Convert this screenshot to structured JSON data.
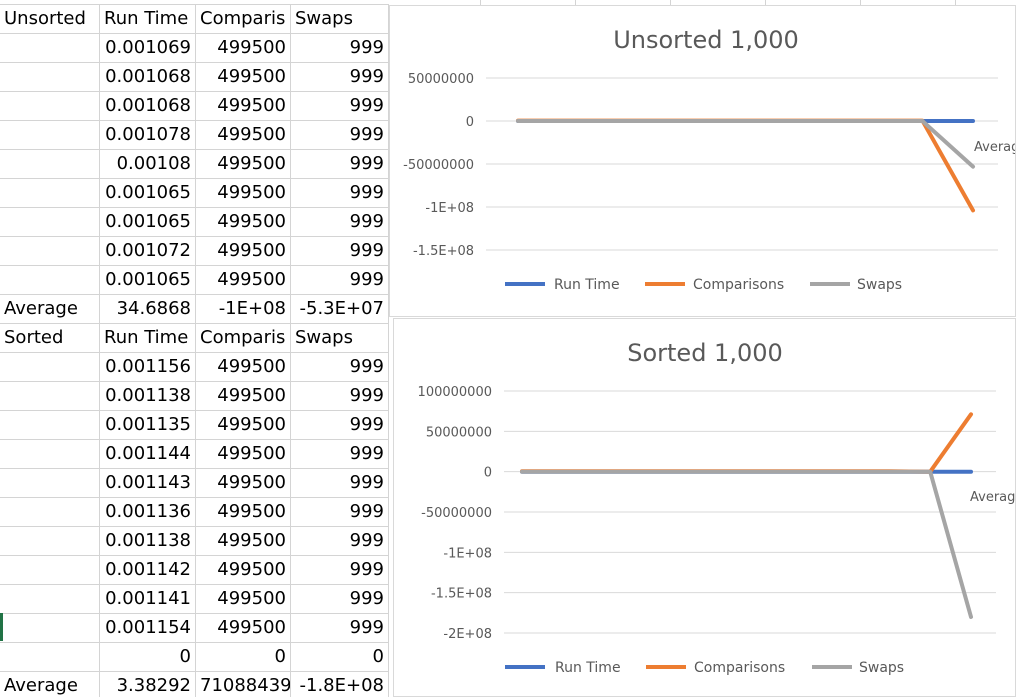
{
  "sheet": {
    "unsorted_block": {
      "header": [
        "Unsorted",
        "Run Time",
        "Comparis",
        "Swaps"
      ],
      "rows": [
        [
          "",
          "0.001069",
          "499500",
          "999"
        ],
        [
          "",
          "0.001068",
          "499500",
          "999"
        ],
        [
          "",
          "0.001068",
          "499500",
          "999"
        ],
        [
          "",
          "0.001078",
          "499500",
          "999"
        ],
        [
          "",
          "0.00108",
          "499500",
          "999"
        ],
        [
          "",
          "0.001065",
          "499500",
          "999"
        ],
        [
          "",
          "0.001065",
          "499500",
          "999"
        ],
        [
          "",
          "0.001072",
          "499500",
          "999"
        ],
        [
          "",
          "0.001065",
          "499500",
          "999"
        ]
      ],
      "average": [
        "Average",
        "34.6868",
        "-1E+08",
        "-5.3E+07"
      ]
    },
    "sorted_block": {
      "header": [
        "Sorted",
        "Run Time",
        "Comparis",
        "Swaps"
      ],
      "rows": [
        [
          "",
          "0.001156",
          "499500",
          "999"
        ],
        [
          "",
          "0.001138",
          "499500",
          "999"
        ],
        [
          "",
          "0.001135",
          "499500",
          "999"
        ],
        [
          "",
          "0.001144",
          "499500",
          "999"
        ],
        [
          "",
          "0.001143",
          "499500",
          "999"
        ],
        [
          "",
          "0.001136",
          "499500",
          "999"
        ],
        [
          "",
          "0.001138",
          "499500",
          "999"
        ],
        [
          "",
          "0.001142",
          "499500",
          "999"
        ],
        [
          "",
          "0.001141",
          "499500",
          "999"
        ],
        [
          "",
          "0.001154",
          "499500",
          "999"
        ],
        [
          "",
          "0",
          "0",
          "0"
        ]
      ],
      "average": [
        "Average",
        "3.38292",
        "71088439",
        "-1.8E+08"
      ]
    }
  },
  "colors": {
    "run_time": "#4472c4",
    "comparisons": "#ed7d31",
    "swaps": "#a5a5a5",
    "gridline": "#d9d9d9",
    "cell_border": "#d4d4d4"
  },
  "chart_data": [
    {
      "type": "line",
      "title": "Unsorted 1,000",
      "x": [
        "",
        "",
        "",
        "",
        "",
        "",
        "",
        "",
        "",
        "Average"
      ],
      "series": [
        {
          "name": "Run Time",
          "values": [
            0.001069,
            0.001068,
            0.001068,
            0.001078,
            0.00108,
            0.001065,
            0.001065,
            0.001072,
            0.001065,
            34.6868
          ]
        },
        {
          "name": "Comparisons",
          "values": [
            499500,
            499500,
            499500,
            499500,
            499500,
            499500,
            499500,
            499500,
            499500,
            -104000000
          ]
        },
        {
          "name": "Swaps",
          "values": [
            999,
            999,
            999,
            999,
            999,
            999,
            999,
            999,
            999,
            -53000000
          ]
        }
      ],
      "y_ticks": [
        "50000000",
        "0",
        "-50000000",
        "-1E+08",
        "-1.5E+08"
      ],
      "ylim": [
        -150000000,
        50000000
      ],
      "grid": true,
      "legend": "bottom"
    },
    {
      "type": "line",
      "title": "Sorted 1,000",
      "x": [
        "",
        "",
        "",
        "",
        "",
        "",
        "",
        "",
        "",
        "",
        "",
        "Average"
      ],
      "series": [
        {
          "name": "Run Time",
          "values": [
            0.001156,
            0.001138,
            0.001135,
            0.001144,
            0.001143,
            0.001136,
            0.001138,
            0.001142,
            0.001141,
            0.001154,
            0,
            3.38292
          ]
        },
        {
          "name": "Comparisons",
          "values": [
            499500,
            499500,
            499500,
            499500,
            499500,
            499500,
            499500,
            499500,
            499500,
            499500,
            0,
            71088439
          ]
        },
        {
          "name": "Swaps",
          "values": [
            999,
            999,
            999,
            999,
            999,
            999,
            999,
            999,
            999,
            999,
            0,
            -180000000
          ]
        }
      ],
      "y_ticks": [
        "100000000",
        "50000000",
        "0",
        "-50000000",
        "-1E+08",
        "-1.5E+08",
        "-2E+08"
      ],
      "ylim": [
        -200000000,
        100000000
      ],
      "grid": true,
      "legend": "bottom"
    }
  ]
}
